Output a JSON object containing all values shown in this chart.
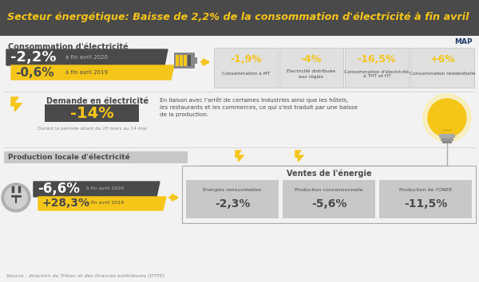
{
  "title": "Secteur énergétique: Baisse de 2,2% de la consommation d'électricité à fin avril",
  "title_bg": "#4a4a4a",
  "title_color": "#f5c518",
  "map_label": "MAP",
  "bg_color": "#f2f2f2",
  "section1_label": "Consommation d'électricité",
  "val1_dark": "-2,2%",
  "val1_dark_sub": "à fin avril 2020",
  "val1_yellow": "-0,6%",
  "val1_yellow_sub": "à fin avril 2019",
  "boxes": [
    {
      "val": "-1,9%",
      "label": "Consommation à MT"
    },
    {
      "val": "-4%",
      "label": "Électricité distribuée\naux régies"
    },
    {
      "val": "-16,5%",
      "label": "Consommation d'électricité\nà THT et HT"
    },
    {
      "val": "+6%",
      "label": "Consommation résidentielle"
    }
  ],
  "section2_label": "Demande en électricité",
  "val2": "-14%",
  "val2_sub": "Durant la période allant du 20 mars au 14 mai",
  "val2_desc": "En liaison avec l'arrêt de certaines industries ainsi que les hôtels,\nles restaurants et les commerces, ce qui s'est traduit par une baisse\nde la production.",
  "section3_label": "Production locale d'électricité",
  "val3_dark": "-6,6%",
  "val3_dark_sub": "à fin avril 2020",
  "val3_yellow": "+28,3%",
  "val3_yellow_sub": "à fin avril 2019",
  "ventes_label": "Ventes de l'énergie",
  "ventes_boxes": [
    {
      "val": "-2,3%",
      "label": "Énergies renouvelables"
    },
    {
      "val": "-5,6%",
      "label": "Production concessionnelle"
    },
    {
      "val": "-11,5%",
      "label": "Production de l'ONEE"
    }
  ],
  "source": "Source : direction du Trésor et des finances extérieures (DTFE)",
  "dark_color": "#4a4a4a",
  "yellow_color": "#f5c518",
  "white": "#ffffff",
  "lightgray": "#e0e0e0",
  "midgray": "#c8c8c8"
}
